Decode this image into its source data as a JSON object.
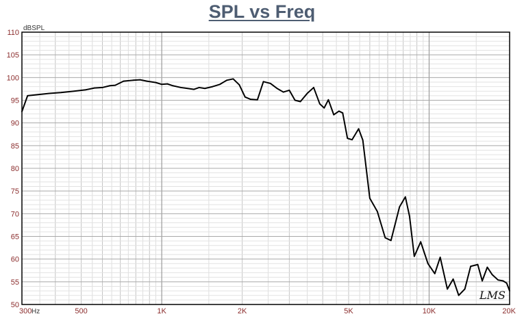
{
  "chart_data": {
    "type": "line",
    "title": "SPL vs Freq",
    "ylabel": "dBSPL",
    "xunit": "Hz",
    "xscale": "log",
    "xlim": [
      300,
      20000
    ],
    "ylim": [
      50,
      110
    ],
    "yticks": [
      50,
      55,
      60,
      65,
      70,
      75,
      80,
      85,
      90,
      95,
      100,
      105,
      110
    ],
    "xtick_labels": [
      {
        "value": 300,
        "label": "300"
      },
      {
        "value": 500,
        "label": "500"
      },
      {
        "value": 1000,
        "label": "1K"
      },
      {
        "value": 2000,
        "label": "2K"
      },
      {
        "value": 5000,
        "label": "5K"
      },
      {
        "value": 10000,
        "label": "10K"
      },
      {
        "value": 20000,
        "label": "20K"
      }
    ],
    "grid": true,
    "watermark": "LMS",
    "series": [
      {
        "color": "#000000",
        "x": [
          300,
          315,
          340,
          380,
          420,
          470,
          520,
          560,
          600,
          640,
          670,
          720,
          780,
          830,
          880,
          950,
          1000,
          1050,
          1100,
          1180,
          1250,
          1320,
          1380,
          1450,
          1550,
          1650,
          1750,
          1850,
          1950,
          2050,
          2150,
          2280,
          2400,
          2550,
          2700,
          2850,
          3000,
          3150,
          3300,
          3500,
          3700,
          3900,
          4050,
          4200,
          4400,
          4600,
          4750,
          4950,
          5150,
          5450,
          5650,
          6000,
          6400,
          6850,
          7200,
          7750,
          8150,
          8450,
          8800,
          9300,
          9900,
          10500,
          11000,
          11700,
          12300,
          12900,
          13600,
          14300,
          15200,
          15800,
          16500,
          17200,
          18100,
          18900,
          19500,
          20000
        ],
        "y": [
          92.5,
          96.0,
          96.2,
          96.5,
          96.7,
          97.0,
          97.3,
          97.7,
          97.8,
          98.2,
          98.3,
          99.2,
          99.4,
          99.5,
          99.2,
          98.9,
          98.5,
          98.6,
          98.2,
          97.8,
          97.6,
          97.4,
          97.8,
          97.6,
          98.0,
          98.5,
          99.4,
          99.7,
          98.4,
          95.7,
          95.2,
          95.1,
          99.1,
          98.7,
          97.6,
          96.8,
          97.2,
          95.0,
          94.7,
          96.5,
          97.8,
          94.2,
          93.3,
          95.1,
          91.8,
          92.6,
          92.2,
          86.6,
          86.3,
          88.7,
          86.2,
          73.4,
          70.5,
          64.7,
          64.1,
          71.5,
          73.7,
          69.4,
          60.6,
          63.8,
          59.0,
          56.8,
          60.4,
          53.4,
          55.6,
          52.0,
          53.4,
          58.4,
          58.8,
          55.2,
          58.2,
          56.6,
          55.4,
          55.2,
          54.7,
          53.0
        ]
      }
    ]
  }
}
